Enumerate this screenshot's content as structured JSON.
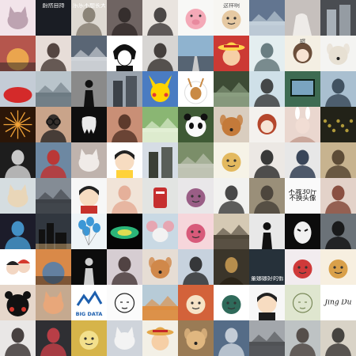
{
  "grid": {
    "columns": 10,
    "rows": 10,
    "tiles": [
      {
        "bg": "#f2e4ea",
        "fg": "#bda3b1",
        "motif": "cat-photo"
      },
      {
        "bg": "#1a1d24",
        "fg": "#d9dbe0",
        "motif": "dark-text-card",
        "caption": "蔚然自持",
        "captionColor": "#ffffff",
        "captionPos": "top"
      },
      {
        "bg": "#ded9d2",
        "fg": "#7d7468",
        "motif": "person-portrait",
        "caption": "乐乐不想长大",
        "captionColor": "#ffffff",
        "captionPos": "top"
      },
      {
        "bg": "#6f6462",
        "fg": "#2c2424",
        "motif": "person-portrait"
      },
      {
        "bg": "#e9e4df",
        "fg": "#2f2b2b",
        "motif": "person-portrait"
      },
      {
        "bg": "#f8f8f6",
        "fg": "#f4a9b7",
        "motif": "pig-cartoon"
      },
      {
        "bg": "#f7f6f2",
        "fg": "#e6c9a2",
        "motif": "cartoon-face",
        "caption": "这样啊",
        "captionColor": "#5c5c5c",
        "captionPos": "top"
      },
      {
        "bg": "#627590",
        "fg": "#c7d3dd",
        "motif": "scenery"
      },
      {
        "bg": "#c6c0bd",
        "fg": "#eeebe8",
        "motif": "hand"
      },
      {
        "bg": "#4a4d52",
        "fg": "#a8b0b8",
        "motif": "building"
      },
      {
        "bg": "#b5564d",
        "fg": "#f3b34f",
        "motif": "sunset-glow"
      },
      {
        "bg": "#e7ddd8",
        "fg": "#3b2c28",
        "motif": "person-portrait"
      },
      {
        "bg": "#5a6675",
        "fg": "#d5d8dd",
        "motif": "scenery"
      },
      {
        "bg": "#ffffff",
        "fg": "#111111",
        "motif": "anime-bw"
      },
      {
        "bg": "#d7d5d3",
        "fg": "#2a2422",
        "motif": "person-portrait"
      },
      {
        "bg": "#8fb3cf",
        "fg": "#566473",
        "motif": "road-scene"
      },
      {
        "bg": "#cc3a34",
        "fg": "#ffd34b",
        "motif": "luffy-cartoon"
      },
      {
        "bg": "#e4eef0",
        "fg": "#556a6e",
        "motif": "person-portrait"
      },
      {
        "bg": "#f4efe3",
        "fg": "#6b4e3a",
        "motif": "anime-girl",
        "caption": "甜",
        "captionColor": "#3a3a3a",
        "captionPos": "top"
      },
      {
        "bg": "#f4f4f2",
        "fg": "#e7e0d3",
        "motif": "dog-photo"
      },
      {
        "bg": "#c4ccd6",
        "fg": "#d42a2a",
        "motif": "red-hat"
      },
      {
        "bg": "#b9c4cb",
        "fg": "#6a7880",
        "motif": "scenery"
      },
      {
        "bg": "#8a8a8a",
        "fg": "#111111",
        "motif": "silhouette"
      },
      {
        "bg": "#9aa3ad",
        "fg": "#3b4148",
        "motif": "building"
      },
      {
        "bg": "#4a7cc2",
        "fg": "#ffd400",
        "motif": "pikachu-cartoon"
      },
      {
        "bg": "#ffffff",
        "fg": "#c98a45",
        "motif": "deer-cartoon"
      },
      {
        "bg": "#3d4b35",
        "fg": "#8ea184",
        "motif": "scenery"
      },
      {
        "bg": "#cfe0e8",
        "fg": "#2b2b2b",
        "motif": "person-portrait"
      },
      {
        "bg": "#3e6b52",
        "fg": "#0d2016",
        "motif": "screen"
      },
      {
        "bg": "#a9bfd0",
        "fg": "#2f3e4e",
        "motif": "person-portrait"
      },
      {
        "bg": "#2b1608",
        "fg": "#f0a238",
        "motif": "fireworks"
      },
      {
        "bg": "#c9a48a",
        "fg": "#1b1b1b",
        "motif": "glasses-girl"
      },
      {
        "bg": "#0e0e0e",
        "fg": "#e9e9e9",
        "motif": "tooth-icon"
      },
      {
        "bg": "#c98f76",
        "fg": "#4a2b20",
        "motif": "person-portrait"
      },
      {
        "bg": "#8ab673",
        "fg": "#e6f1d8",
        "motif": "scenery"
      },
      {
        "bg": "#3f5a35",
        "fg": "#111111",
        "motif": "panda"
      },
      {
        "bg": "#d9cdbf",
        "fg": "#c47a3a",
        "motif": "dog-photo"
      },
      {
        "bg": "#f4f1ee",
        "fg": "#b5462c",
        "motif": "anime-girl"
      },
      {
        "bg": "#ead7cf",
        "fg": "#ffffff",
        "motif": "bunny-girl"
      },
      {
        "bg": "#222218",
        "fg": "#b09a3a",
        "motif": "night-lights"
      },
      {
        "bg": "#1d1d1d",
        "fg": "#e6e6e6",
        "motif": "person-portrait"
      },
      {
        "bg": "#6d88a2",
        "fg": "#c82a24",
        "motif": "person-portrait"
      },
      {
        "bg": "#bfb3ad",
        "fg": "#f0ebe8",
        "motif": "cat-photo"
      },
      {
        "bg": "#fefefe",
        "fg": "#ffd23a",
        "motif": "boy-cartoon"
      },
      {
        "bg": "#d6dde5",
        "fg": "#3a3f35",
        "motif": "building"
      },
      {
        "bg": "#7b8e69",
        "fg": "#c7c9bb",
        "motif": "scenery"
      },
      {
        "bg": "#f6f3e7",
        "fg": "#e3b95f",
        "motif": "cartoon-face"
      },
      {
        "bg": "#ece8e4",
        "fg": "#1a1a1a",
        "motif": "person-portrait"
      },
      {
        "bg": "#e7e7e7",
        "fg": "#1b2940",
        "motif": "person-portrait"
      },
      {
        "bg": "#c7b38f",
        "fg": "#4a3a28",
        "motif": "person-portrait"
      },
      {
        "bg": "#d5dde0",
        "fg": "#e9d6b8",
        "motif": "cat-photo"
      },
      {
        "bg": "#848c95",
        "fg": "#3a3e44",
        "motif": "scenery"
      },
      {
        "bg": "#f7f7f7",
        "fg": "#c6312c",
        "motif": "boy-cartoon"
      },
      {
        "bg": "#f1e4d8",
        "fg": "#e3a78f",
        "motif": "person-portrait"
      },
      {
        "bg": "#e2e4e2",
        "fg": "#c62f2f",
        "motif": "mailbox"
      },
      {
        "bg": "#e9e7e9",
        "fg": "#9a5e86",
        "motif": "cartoon-face"
      },
      {
        "bg": "#f2f2f0",
        "fg": "#2a2a2a",
        "motif": "person-portrait"
      },
      {
        "bg": "#9a8f79",
        "fg": "#3f3a33",
        "motif": "person-portrait"
      },
      {
        "bg": "#fafafa",
        "fg": "#111111",
        "motif": "text-card",
        "caption": "不减30斤\n不换头像",
        "captionColor": "#111111",
        "captionPos": "mid"
      },
      {
        "bg": "#e3d2c9",
        "fg": "#7a3a2a",
        "motif": "person-portrait"
      },
      {
        "bg": "#1c1c2a",
        "fg": "#4aa5e0",
        "motif": "person-portrait"
      },
      {
        "bg": "#31373f",
        "fg": "#d9b27a",
        "motif": "city-night"
      },
      {
        "bg": "#eef4f7",
        "fg": "#3c97d6",
        "motif": "balloons"
      },
      {
        "bg": "#050505",
        "fg": "#38f0a0",
        "motif": "neon-splash"
      },
      {
        "bg": "#c9d9e4",
        "fg": "#e6a6b2",
        "motif": "mouse-cartoon"
      },
      {
        "bg": "#f6d6db",
        "fg": "#d85a7a",
        "motif": "cartoon-face"
      },
      {
        "bg": "#d5c9b4",
        "fg": "#4b4236",
        "motif": "scenery"
      },
      {
        "bg": "#e8e8e8",
        "fg": "#111111",
        "motif": "silhouette"
      },
      {
        "bg": "#0c0c0c",
        "fg": "#f1f1f1",
        "motif": "mask-face"
      },
      {
        "bg": "#6b7278",
        "fg": "#0a0a0a",
        "motif": "person-portrait"
      },
      {
        "bg": "#ffffff",
        "fg": "#d43a2f",
        "motif": "couple-cartoon"
      },
      {
        "bg": "#d98948",
        "fg": "#4e7fb0",
        "motif": "sunset-glow"
      },
      {
        "bg": "#0c0c0c",
        "fg": "#cfcfcf",
        "motif": "silhouette"
      },
      {
        "bg": "#d6cdd2",
        "fg": "#3a2a2a",
        "motif": "person-portrait"
      },
      {
        "bg": "#e6ddd4",
        "fg": "#d0884a",
        "motif": "dog-photo"
      },
      {
        "bg": "#c7d2de",
        "fg": "#1c1c1c",
        "motif": "child-photo"
      },
      {
        "bg": "#3b352a",
        "fg": "#b78e4d",
        "motif": "mona-lisa"
      },
      {
        "bg": "#26313a",
        "fg": "#d7e6f0",
        "motif": "dark-text-card",
        "caption": "董娜娜好的假笑",
        "captionColor": "#ffffff",
        "captionPos": "bottom"
      },
      {
        "bg": "#f2ecef",
        "fg": "#cf3a3a",
        "motif": "cartoon-face"
      },
      {
        "bg": "#f7efe0",
        "fg": "#d9a04a",
        "motif": "cartoon-face"
      },
      {
        "bg": "#e6d7cb",
        "fg": "#111111",
        "motif": "kumamon-bear"
      },
      {
        "bg": "#c5a98f",
        "fg": "#e8a77a",
        "motif": "cat-photo"
      },
      {
        "bg": "#ffffff",
        "fg": "#1d5fae",
        "motif": "logo-card",
        "caption": "BIG DATA",
        "captionColor": "#1d5fae",
        "captionPos": "bottom"
      },
      {
        "bg": "#fbfbfb",
        "fg": "#222222",
        "motif": "sketch-face"
      },
      {
        "bg": "#b7cbd7",
        "fg": "#e08b3a",
        "motif": "scenery"
      },
      {
        "bg": "#d3623a",
        "fg": "#f6e3c6",
        "motif": "cartoon-face"
      },
      {
        "bg": "#ffffff",
        "fg": "#2f6a5a",
        "motif": "cartoon-face"
      },
      {
        "bg": "#f7f7f7",
        "fg": "#1c1c1c",
        "motif": "boy-cartoon"
      },
      {
        "bg": "#dfe6cf",
        "fg": "#7a8a5a",
        "motif": "sketch-face"
      },
      {
        "bg": "#ffffff",
        "fg": "#111111",
        "motif": "signature-card",
        "caption": "Jing Du",
        "captionColor": "#111111",
        "captionPos": "mid"
      },
      {
        "bg": "#e9e7e6",
        "fg": "#2a2322",
        "motif": "person-portrait"
      },
      {
        "bg": "#2f2f33",
        "fg": "#d0414a",
        "motif": "person-portrait"
      },
      {
        "bg": "#d6b44a",
        "fg": "#f3e08c",
        "motif": "cartoon-face"
      },
      {
        "bg": "#cfd4db",
        "fg": "#f3f3f3",
        "motif": "cat-photo"
      },
      {
        "bg": "#f3f0e6",
        "fg": "#e4a84a",
        "motif": "luffy-cartoon"
      },
      {
        "bg": "#9a7b55",
        "fg": "#e0b780",
        "motif": "dog-photo"
      },
      {
        "bg": "#556c87",
        "fg": "#d7dde4",
        "motif": "person-portrait"
      },
      {
        "bg": "#a3a7ac",
        "fg": "#4d4f52",
        "motif": "scenery"
      },
      {
        "bg": "#bec3c4",
        "fg": "#433a35",
        "motif": "person-portrait"
      },
      {
        "bg": "#d9d3c7",
        "fg": "#2c2a28",
        "motif": "person-portrait"
      }
    ]
  }
}
